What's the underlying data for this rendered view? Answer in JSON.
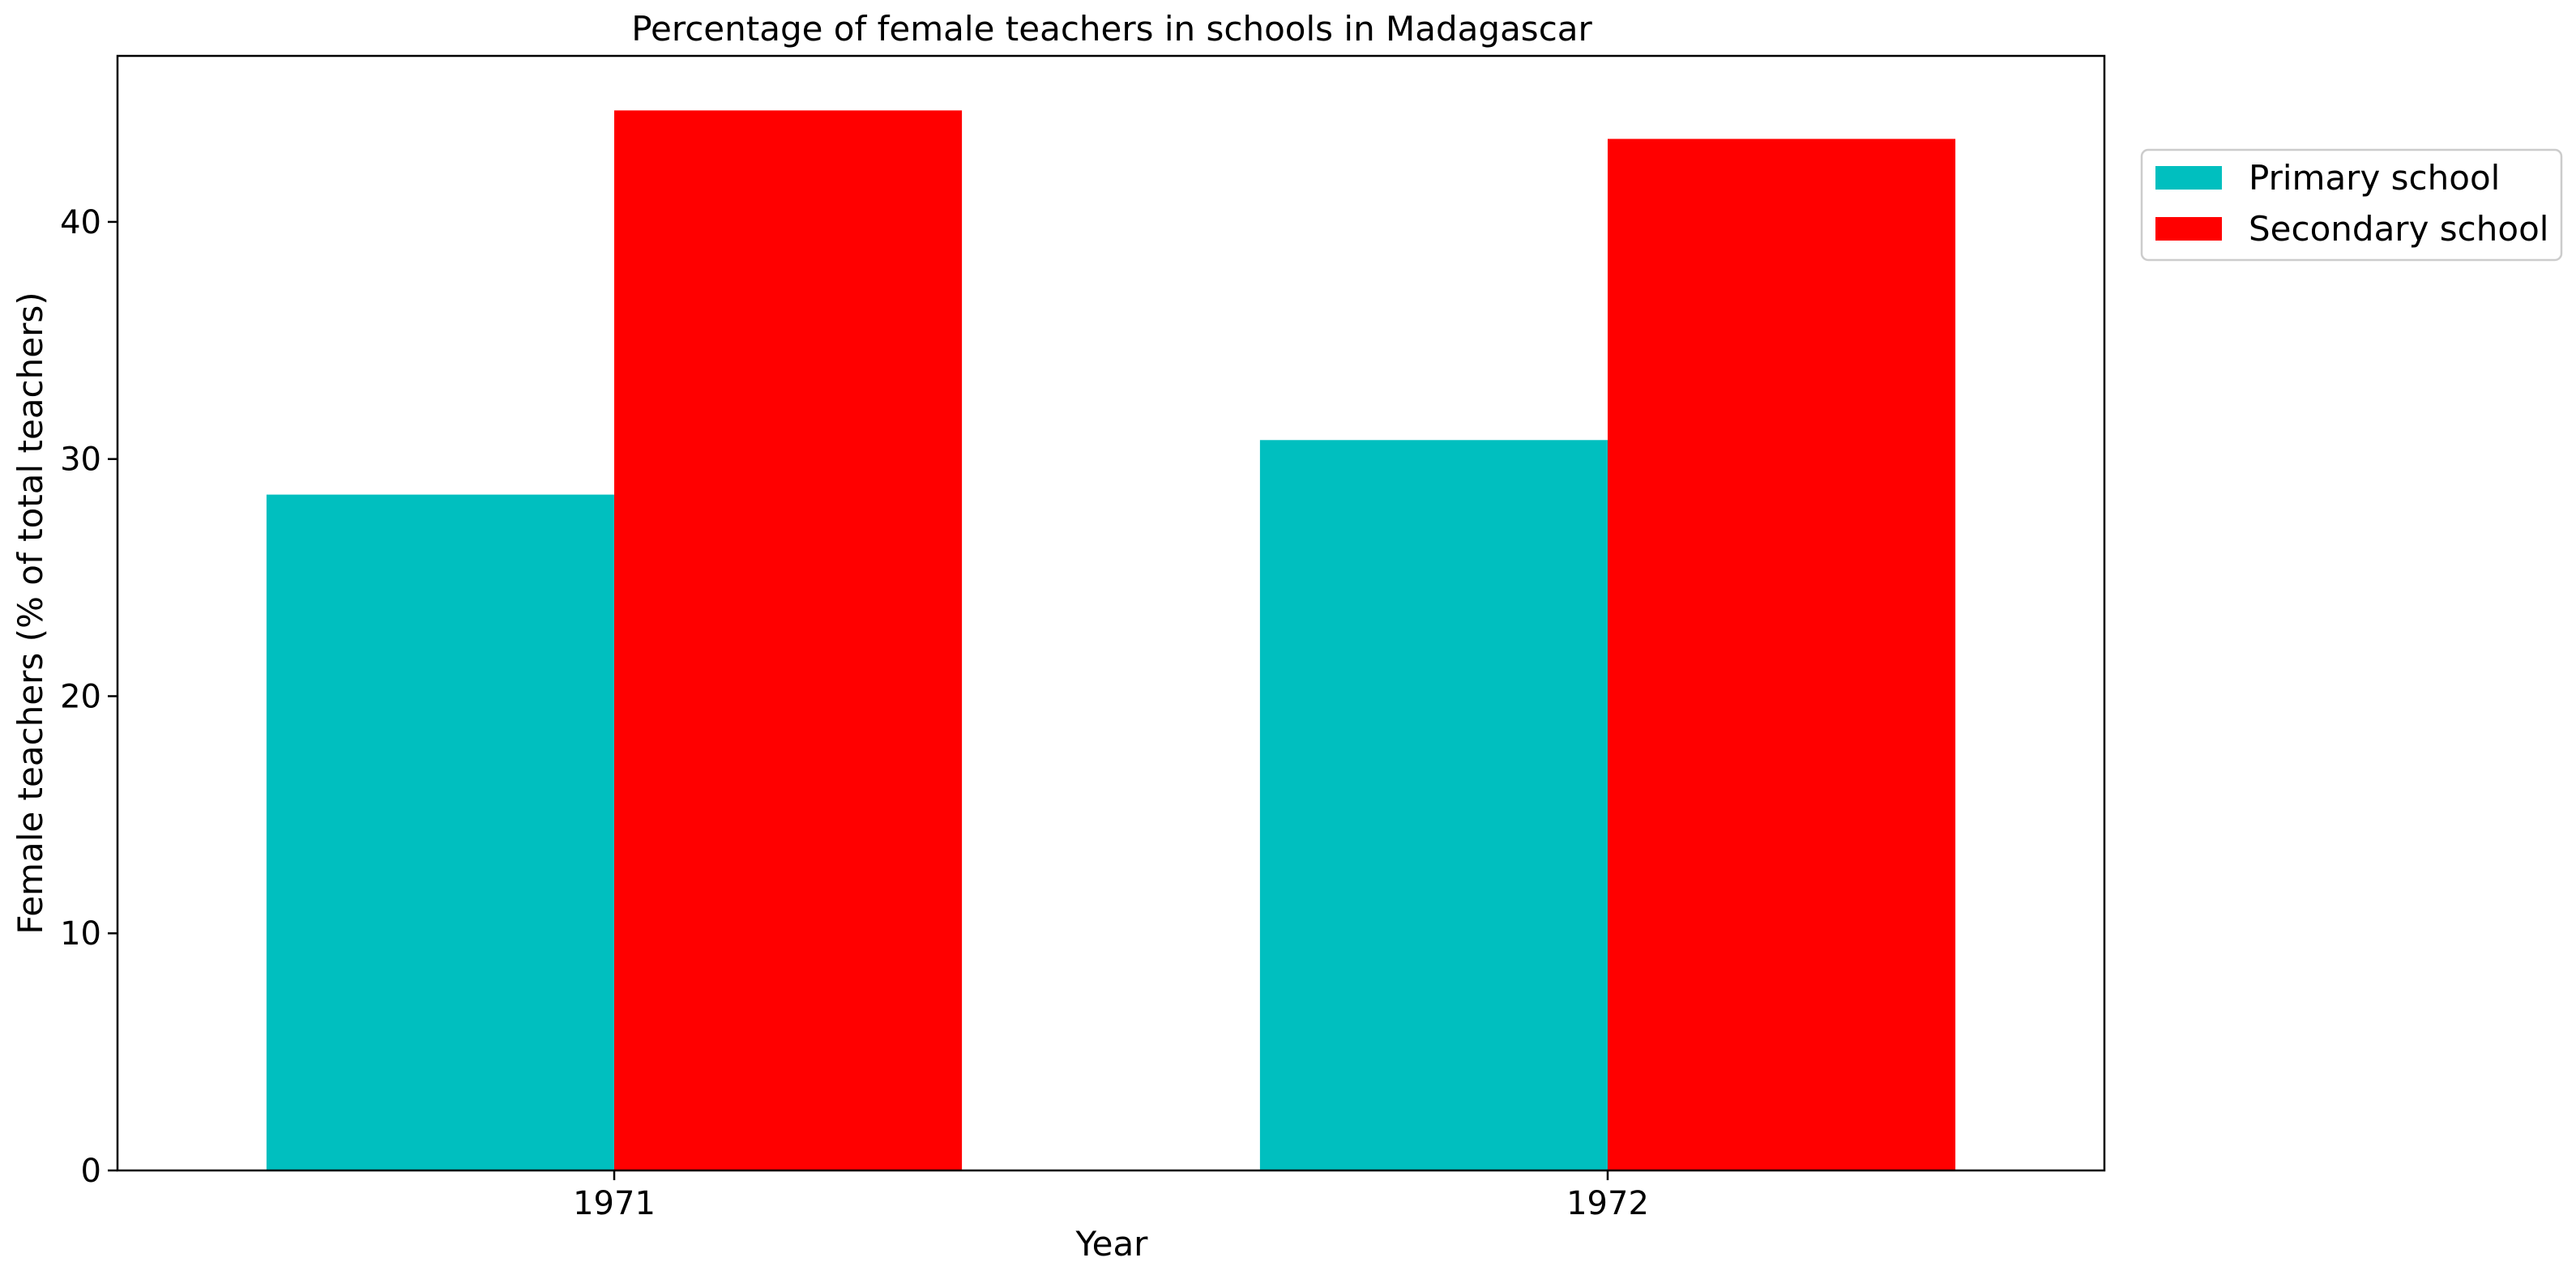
{
  "chart_data": {
    "type": "bar",
    "title": "Percentage of female teachers in schools in Madagascar",
    "xlabel": "Year",
    "ylabel": "Female teachers (% of total teachers)",
    "categories": [
      "1971",
      "1972"
    ],
    "series": [
      {
        "name": "Primary school",
        "values": [
          28.5,
          30.8
        ],
        "color": "#00bfbf"
      },
      {
        "name": "Secondary school",
        "values": [
          44.7,
          43.5
        ],
        "color": "#ff0000"
      }
    ],
    "ylim": [
      0,
      47
    ],
    "yticks": [
      0,
      10,
      20,
      30,
      40
    ],
    "grid": false,
    "legend_position": "upper right, outside plot"
  }
}
